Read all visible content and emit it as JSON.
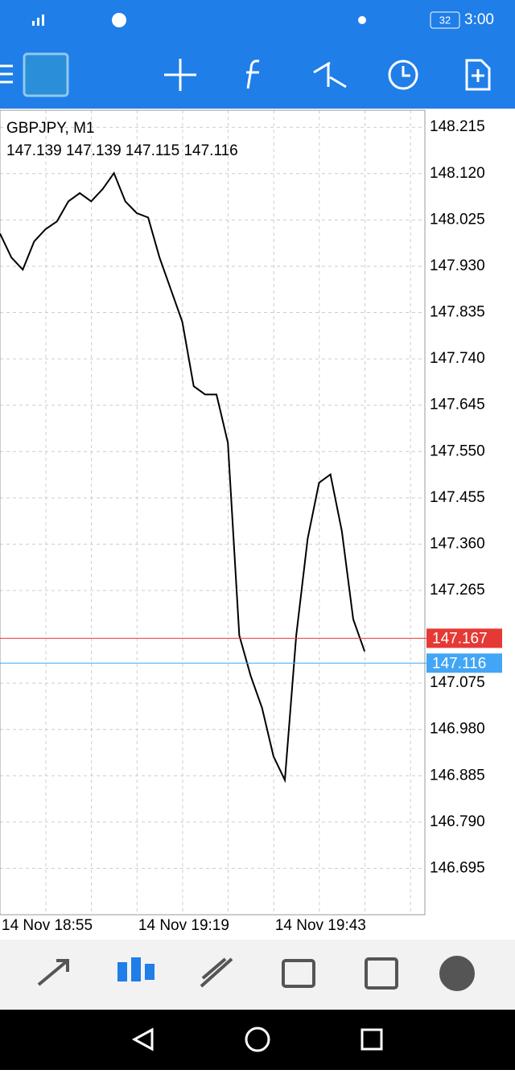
{
  "status_bar": {
    "time": "3:00",
    "battery": "32"
  },
  "chart_data": {
    "type": "line",
    "title": "GBPJPY, M1",
    "subtitle": "147.139 147.139 147.115 147.116",
    "categories": [
      "14 Nov 18:55",
      null,
      null,
      null,
      null,
      null,
      null,
      null,
      null,
      null,
      null,
      null,
      "14 Nov 19:19",
      null,
      null,
      null,
      null,
      null,
      null,
      null,
      null,
      null,
      null,
      null,
      "14 Nov 19:43",
      null,
      null,
      null,
      null,
      null,
      null,
      null,
      null
    ],
    "series": [
      {
        "name": "GBPJPY",
        "color": "#000000",
        "values": [
          147.997,
          147.948,
          147.923,
          147.981,
          148.006,
          148.022,
          148.063,
          148.08,
          148.063,
          148.088,
          148.121,
          148.063,
          148.039,
          148.03,
          147.948,
          147.882,
          147.816,
          147.684,
          147.667,
          147.667,
          147.568,
          147.173,
          147.09,
          147.024,
          146.925,
          146.876,
          147.173,
          147.371,
          147.486,
          147.503,
          147.387,
          147.206,
          147.14
        ]
      }
    ],
    "ylim": [
      146.6,
      148.25
    ],
    "yticks": [
      {
        "value": 148.215,
        "label": "148.215"
      },
      {
        "value": 148.12,
        "label": "148.120"
      },
      {
        "value": 148.025,
        "label": "148.025"
      },
      {
        "value": 147.93,
        "label": "147.930"
      },
      {
        "value": 147.835,
        "label": "147.835"
      },
      {
        "value": 147.74,
        "label": "147.740"
      },
      {
        "value": 147.645,
        "label": "147.645"
      },
      {
        "value": 147.55,
        "label": "147.550"
      },
      {
        "value": 147.455,
        "label": "147.455"
      },
      {
        "value": 147.36,
        "label": "147.360"
      },
      {
        "value": 147.265,
        "label": "147.265"
      },
      {
        "value": 147.075,
        "label": "147.075"
      },
      {
        "value": 146.98,
        "label": "146.980"
      },
      {
        "value": 146.885,
        "label": "146.885"
      },
      {
        "value": 146.79,
        "label": "146.790"
      },
      {
        "value": 146.695,
        "label": "146.695"
      }
    ],
    "price_lines": [
      {
        "value": 147.167,
        "color": "#e53935"
      },
      {
        "value": 147.116,
        "color": "#42a5f5"
      }
    ],
    "grid": true
  }
}
